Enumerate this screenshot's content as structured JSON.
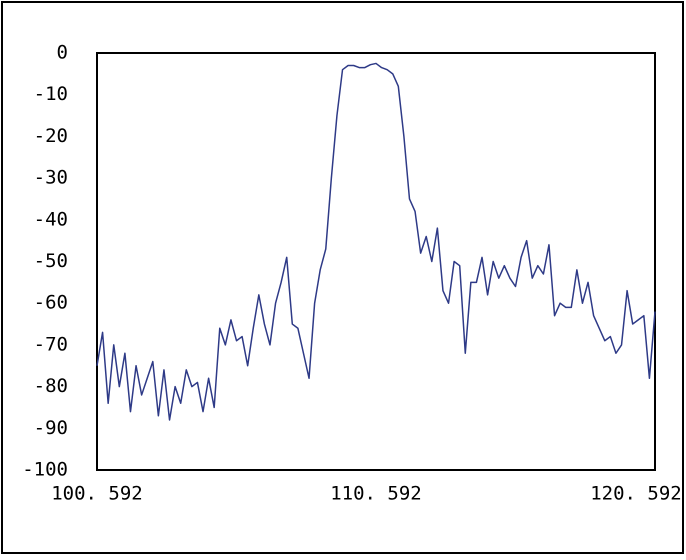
{
  "chart_data": {
    "type": "line",
    "x": [
      100.592,
      100.792,
      100.992,
      101.192,
      101.392,
      101.592,
      101.792,
      101.992,
      102.192,
      102.392,
      102.592,
      102.792,
      102.992,
      103.192,
      103.392,
      103.592,
      103.792,
      103.992,
      104.192,
      104.392,
      104.592,
      104.792,
      104.992,
      105.192,
      105.392,
      105.592,
      105.792,
      105.992,
      106.192,
      106.392,
      106.592,
      106.792,
      106.992,
      107.192,
      107.392,
      107.592,
      107.792,
      107.992,
      108.192,
      108.392,
      108.592,
      108.792,
      108.992,
      109.192,
      109.392,
      109.592,
      109.792,
      109.992,
      110.192,
      110.392,
      110.592,
      110.792,
      110.992,
      111.192,
      111.392,
      111.592,
      111.792,
      111.992,
      112.192,
      112.392,
      112.592,
      112.792,
      112.992,
      113.192,
      113.392,
      113.592,
      113.792,
      113.992,
      114.192,
      114.392,
      114.592,
      114.792,
      114.992,
      115.192,
      115.392,
      115.592,
      115.792,
      115.992,
      116.192,
      116.392,
      116.592,
      116.792,
      116.992,
      117.192,
      117.392,
      117.592,
      117.792,
      117.992,
      118.192,
      118.392,
      118.592,
      118.792,
      118.992,
      119.192,
      119.392,
      119.592,
      119.792,
      119.992,
      120.192,
      120.392,
      120.592
    ],
    "series": [
      {
        "color": "#2e3a87",
        "values": [
          -75,
          -67,
          -84,
          -70,
          -80,
          -72,
          -86,
          -75,
          -82,
          -78,
          -74,
          -87,
          -76,
          -88,
          -80,
          -84,
          -76,
          -80,
          -79,
          -86,
          -78,
          -85,
          -66,
          -70,
          -64,
          -69,
          -68,
          -75,
          -66,
          -58,
          -65,
          -70,
          -60,
          -55,
          -49,
          -65,
          -66,
          -72,
          -78,
          -60,
          -52,
          -47,
          -30,
          -15,
          -4,
          -3,
          -3,
          -3.5,
          -3.5,
          -2.8,
          -2.5,
          -3.5,
          -4,
          -5,
          -8,
          -20,
          -35,
          -38,
          -48,
          -44,
          -50,
          -42,
          -57,
          -60,
          -50,
          -51,
          -72,
          -55,
          -55,
          -49,
          -58,
          -50,
          -54,
          -51,
          -54,
          -56,
          -49,
          -45,
          -54,
          -51,
          -53,
          -46,
          -63,
          -60,
          -61,
          -61,
          -52,
          -60,
          -55,
          -63,
          -66,
          -69,
          -68,
          -72,
          -70,
          -57,
          -65,
          -64,
          -63,
          -78,
          -62
        ]
      }
    ],
    "xlim": [
      100.592,
      120.592
    ],
    "xticks": [
      {
        "value": 100.592,
        "label": "100. 592"
      },
      {
        "value": 110.592,
        "label": "110. 592"
      },
      {
        "value": 120.592,
        "label": "120. 592"
      }
    ],
    "ylim": [
      -100,
      0
    ],
    "yticks": [
      0,
      -10,
      -20,
      -30,
      -40,
      -50,
      -60,
      -70,
      -80,
      -90,
      -100
    ],
    "grid": false
  }
}
